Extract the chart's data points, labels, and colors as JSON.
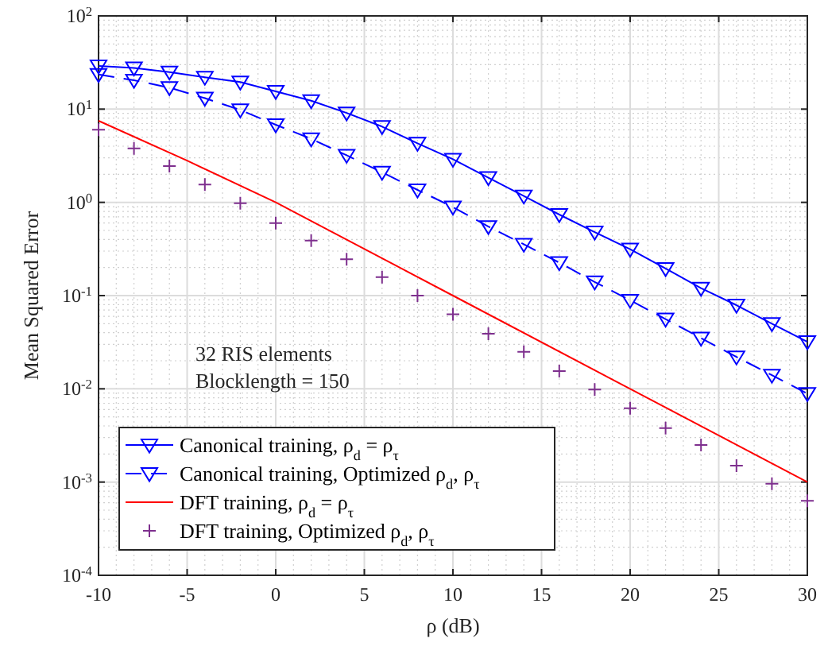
{
  "chart_data": {
    "type": "line",
    "xlabel": "ρ (dB)",
    "ylabel": "Mean Squared Error",
    "log": "y",
    "grid": true,
    "legend": "bottom left",
    "xlim": [
      -10,
      30
    ],
    "xticks": [
      -10,
      -5,
      0,
      5,
      10,
      15,
      20,
      25,
      30
    ],
    "ylim": [
      0.0001,
      100
    ],
    "yticks": [
      {
        "value": 0.0001,
        "label": "10$^{-4}$"
      },
      {
        "value": 0.001,
        "label": "10$^{-3}$"
      },
      {
        "value": 0.01,
        "label": "10$^{-2}$"
      },
      {
        "value": 0.1,
        "label": "10$^{-1}$"
      },
      {
        "value": 1,
        "label": "10$^{0}$"
      },
      {
        "value": 10,
        "label": "10$^{1}$"
      },
      {
        "value": 100,
        "label": "10$^{2}$"
      }
    ],
    "x": [
      -10,
      -8,
      -6,
      -4,
      -2,
      0,
      2,
      4,
      6,
      8,
      10,
      12,
      14,
      16,
      18,
      20,
      22,
      24,
      26,
      28,
      30
    ],
    "annotations": [
      "32 RIS elements",
      "Blocklength = 150"
    ],
    "series": [
      {
        "name": "Canonical training, ρ$_{d}$ = ρ$_{τ}$",
        "type": "line",
        "color": "#0000ff",
        "marker": "triangle",
        "line_style": "solid",
        "values": [
          29,
          27.6,
          25,
          22,
          19.5,
          15.5,
          12.3,
          9.1,
          6.5,
          4.3,
          2.9,
          1.84,
          1.17,
          0.74,
          0.48,
          0.315,
          0.195,
          0.12,
          0.079,
          0.05,
          0.032
        ]
      },
      {
        "name": "Canonical training, Optimized ρ$_{d}$, ρ$_{τ}$",
        "type": "line",
        "color": "#0000ff",
        "marker": "triangle",
        "line_style": "dashed",
        "values": [
          23.5,
          20.4,
          17,
          13.1,
          9.8,
          6.8,
          4.8,
          3.2,
          2.1,
          1.36,
          0.89,
          0.55,
          0.355,
          0.226,
          0.14,
          0.089,
          0.056,
          0.035,
          0.022,
          0.014,
          0.0089
        ]
      },
      {
        "name": "DFT training, ρ$_{d}$ = ρ$_{τ}$",
        "type": "line",
        "color": "#ff0000",
        "marker": "none",
        "line_style": "solid",
        "x": [
          -10,
          -5,
          0,
          10,
          20,
          30
        ],
        "values": [
          7.5,
          2.8,
          1,
          0.1,
          0.01,
          0.001
        ]
      },
      {
        "name": "DFT training, Optimized ρ$_{d}$, ρ$_{τ}$",
        "type": "scatter",
        "color": "#7e2f8e",
        "marker": "cross",
        "values": [
          6.0,
          3.8,
          2.45,
          1.55,
          0.98,
          0.6,
          0.39,
          0.245,
          0.158,
          0.1,
          0.063,
          0.039,
          0.025,
          0.0155,
          0.0098,
          0.0062,
          0.0038,
          0.0025,
          0.0015,
          0.00096,
          0.00063
        ]
      }
    ]
  }
}
